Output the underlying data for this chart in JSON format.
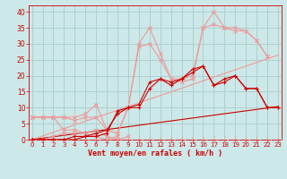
{
  "x": [
    0,
    1,
    2,
    3,
    4,
    5,
    6,
    7,
    8,
    9,
    10,
    11,
    12,
    13,
    14,
    15,
    16,
    17,
    18,
    19,
    20,
    21,
    22,
    23
  ],
  "bg_color": "#cce8e8",
  "grid_color": "#aacccc",
  "xlabel": "Vent moyen/en rafales ( km/h )",
  "ylim": [
    0,
    42
  ],
  "xlim": [
    -0.3,
    23.3
  ],
  "yticks": [
    0,
    5,
    10,
    15,
    20,
    25,
    30,
    35,
    40
  ],
  "xticks": [
    0,
    1,
    2,
    3,
    4,
    5,
    6,
    7,
    8,
    9,
    10,
    11,
    12,
    13,
    14,
    15,
    16,
    17,
    18,
    19,
    20,
    21,
    22,
    23
  ],
  "tick_color": "#cc0000",
  "xlabel_color": "#cc0000",
  "dark_red": "#cc0000",
  "light_pink": "#ee9999",
  "slope_dark": [
    0,
    0.45,
    0.9,
    1.35,
    1.8,
    2.25,
    2.7,
    3.15,
    3.6,
    4.05,
    4.5,
    4.95,
    5.4,
    5.85,
    6.3,
    6.75,
    7.2,
    7.65,
    8.1,
    8.55,
    9.0,
    9.45,
    9.9,
    10.35
  ],
  "slope_light": [
    0,
    1.15,
    2.3,
    3.45,
    4.6,
    5.75,
    6.9,
    8.05,
    9.2,
    10.35,
    11.5,
    12.65,
    13.8,
    14.95,
    16.1,
    17.25,
    18.4,
    19.55,
    20.7,
    21.85,
    23.0,
    24.15,
    25.3,
    26.45
  ],
  "line_pink_high": [
    7,
    7,
    7,
    7,
    7,
    8,
    11,
    3,
    2,
    10,
    30,
    35,
    27,
    19,
    19,
    20,
    35,
    40,
    35,
    35,
    34,
    31,
    26,
    null
  ],
  "line_pink_mid": [
    7,
    7,
    7,
    7,
    6,
    7,
    7,
    3,
    2,
    10,
    29,
    30,
    25,
    19,
    18,
    19,
    35,
    36,
    35,
    34,
    34,
    31,
    26,
    null
  ],
  "line_pink_low1": [
    7,
    7,
    7,
    3,
    3,
    2,
    1,
    0,
    1,
    null,
    null,
    null,
    null,
    null,
    null,
    null,
    null,
    null,
    null,
    null,
    null,
    null,
    null,
    null
  ],
  "line_pink_low2": [
    0,
    0,
    1,
    2,
    2,
    2,
    3,
    1,
    0,
    1,
    null,
    null,
    null,
    null,
    null,
    null,
    null,
    null,
    null,
    null,
    null,
    null,
    null,
    null
  ],
  "line_dark_main": [
    0,
    0,
    0,
    0,
    0,
    1,
    1,
    2,
    9,
    10,
    10,
    16,
    19,
    18,
    19,
    21,
    23,
    17,
    18,
    20,
    16,
    16,
    10,
    10
  ],
  "line_dark_sub": [
    0,
    0,
    0,
    0,
    1,
    1,
    2,
    3,
    8,
    10,
    11,
    18,
    19,
    17,
    19,
    22,
    23,
    17,
    19,
    20,
    16,
    16,
    10,
    10
  ]
}
